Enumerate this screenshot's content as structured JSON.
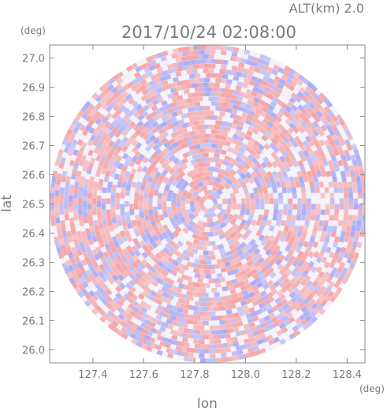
{
  "chart_data": {
    "type": "heatmap",
    "title": "2017/10/24 02:08:00",
    "subtitle": "ALT(km) 2.0",
    "xlabel": "lon",
    "ylabel": "lat",
    "xunit": "(deg)",
    "yunit": "(deg)",
    "xlim": [
      127.23,
      128.47
    ],
    "ylim": [
      25.955,
      27.045
    ],
    "xticks": [
      "127.4",
      "127.6",
      "127.8",
      "128.0",
      "128.2",
      "128.4"
    ],
    "yticks": [
      "26.0",
      "26.1",
      "26.2",
      "26.3",
      "26.4",
      "26.5",
      "26.6",
      "26.7",
      "26.8",
      "26.9",
      "27.0"
    ],
    "center": {
      "lon": 127.855,
      "lat": 26.5
    },
    "radius_lat_deg": 0.545,
    "colors": {
      "positive": "#f5a0a0",
      "negative": "#a8a8f4",
      "neutral": "#f4f2fa",
      "axis": "#8c8c8c",
      "text": "#7a7a7a"
    },
    "grid": false
  }
}
